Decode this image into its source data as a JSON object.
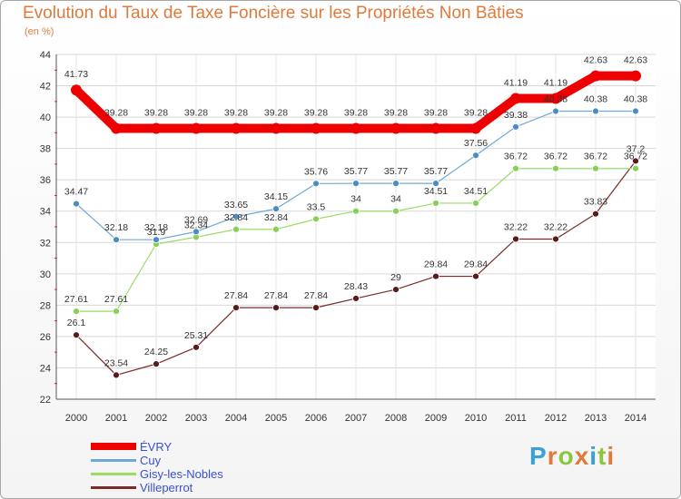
{
  "title": "Evolution du Taux de Taxe Foncière sur les Propriétés Non Bâties",
  "subtitle": "(en %)",
  "logo": {
    "text": "Proxiti",
    "colors": [
      "#3aa0d8",
      "#e07a3c",
      "#8cc63f",
      "#e07a3c",
      "#3aa0d8",
      "#8cc63f",
      "#e07a3c"
    ]
  },
  "chart_data": {
    "type": "line",
    "title": "Evolution du Taux de Taxe Foncière sur les Propriétés Non Bâties",
    "ylabel": "(en %)",
    "xlabel": "",
    "x": [
      "2000",
      "2001",
      "2002",
      "2003",
      "2004",
      "2005",
      "2006",
      "2007",
      "2008",
      "2009",
      "2010",
      "2011",
      "2012",
      "2013",
      "2014"
    ],
    "ylim": [
      22,
      44
    ],
    "yticks": [
      "22",
      "24",
      "26",
      "28",
      "30",
      "32",
      "34",
      "36",
      "38",
      "40",
      "42",
      "44"
    ],
    "grid": true,
    "legend_position": "bottom-left",
    "series": [
      {
        "name": "ÉVRY",
        "color": "#ee0000",
        "values": [
          41.73,
          39.28,
          39.28,
          39.28,
          39.28,
          39.28,
          39.28,
          39.28,
          39.28,
          39.28,
          39.28,
          41.19,
          41.19,
          42.63,
          42.63
        ],
        "labels": [
          "41.73",
          "39.28",
          "39.28",
          "39.28",
          "39.28",
          "39.28",
          "39.28",
          "39.28",
          "39.28",
          "39.28",
          "39.28",
          "41.19",
          "41.19",
          "42.63",
          "42.63"
        ]
      },
      {
        "name": "Cuy",
        "color": "#6fa8d6",
        "values": [
          34.47,
          32.18,
          32.18,
          32.69,
          33.65,
          34.15,
          35.76,
          35.77,
          35.77,
          35.77,
          37.56,
          39.38,
          40.38,
          40.38,
          40.38
        ],
        "labels": [
          "34.47",
          "32.18",
          "32.18",
          "32.69",
          "33.65",
          "34.15",
          "35.76",
          "35.77",
          "35.77",
          "35.77",
          "37.56",
          "39.38",
          "40.38",
          "40.38",
          "40.38"
        ]
      },
      {
        "name": "Gisy-les-Nobles",
        "color": "#99dd66",
        "values": [
          27.61,
          27.61,
          31.9,
          32.34,
          32.84,
          32.84,
          33.5,
          34,
          34,
          34.51,
          34.51,
          36.72,
          36.72,
          36.72,
          36.72
        ],
        "labels": [
          "27.61",
          "27.61",
          "31.9",
          "32.34",
          "32.84",
          "32.84",
          "33.5",
          "34",
          "34",
          "34.51",
          "34.51",
          "36.72",
          "36.72",
          "36.72",
          "36.72"
        ]
      },
      {
        "name": "Villeperrot",
        "color": "#7a2a2a",
        "values": [
          26.1,
          23.54,
          24.25,
          25.31,
          27.84,
          27.84,
          27.84,
          28.43,
          29,
          29.84,
          29.84,
          32.22,
          32.22,
          33.83,
          37.2
        ],
        "labels": [
          "26.1",
          "23.54",
          "24.25",
          "25.31",
          "27.84",
          "27.84",
          "27.84",
          "28.43",
          "29",
          "29.84",
          "29.84",
          "32.22",
          "32.22",
          "33.83",
          "37.2"
        ]
      }
    ]
  }
}
